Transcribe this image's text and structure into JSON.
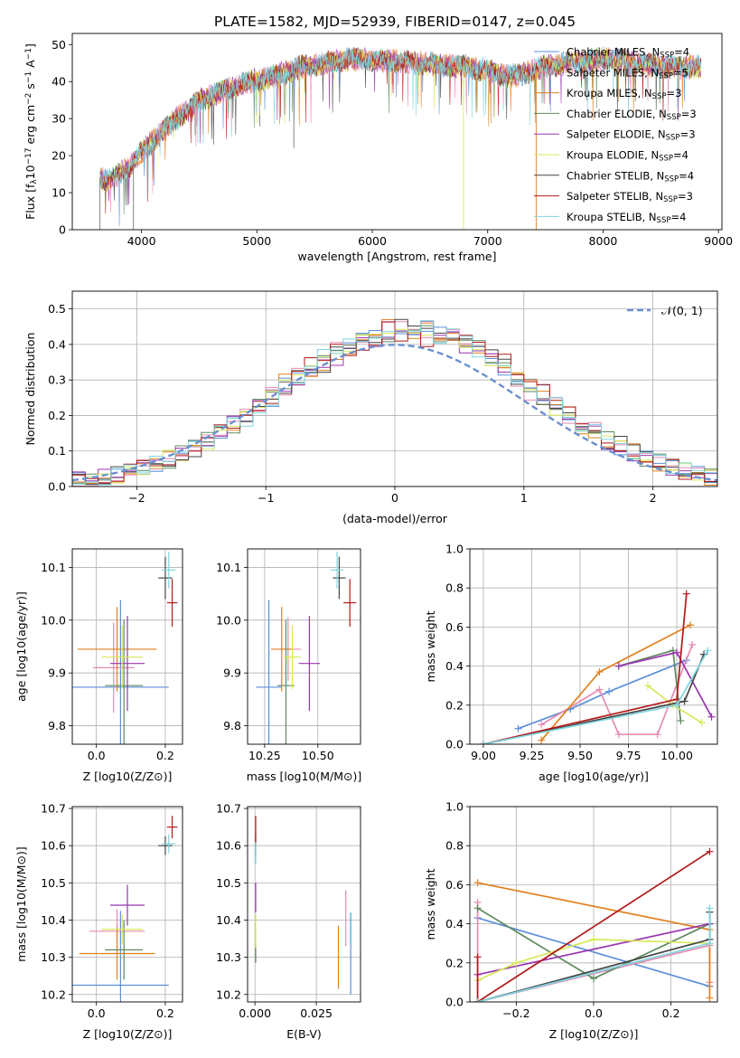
{
  "figure_title": "PLATE=1582, MJD=52939, FIBERID=0147, z=0.045",
  "colors": {
    "Chabrier MILES": "#5b8fd8",
    "Salpeter MILES": "#e68bb3",
    "Kroupa MILES": "#e0811f",
    "Chabrier ELODIE": "#5f8a5f",
    "Salpeter ELODIE": "#9a35b0",
    "Kroupa ELODIE": "#d7e85a",
    "Chabrier STELIB": "#444444",
    "Salpeter STELIB": "#b21a1a",
    "Kroupa STELIB": "#7fd6df"
  },
  "chart_data": [
    {
      "id": "spectrum",
      "type": "line",
      "title": "PLATE=1582, MJD=52939, FIBERID=0147, z=0.045",
      "xlabel": "wavelength [Angstrom, rest frame]",
      "ylabel": "Flux [f_λ10^-17 erg cm^-2 s^-1 A^-1]",
      "xlim": [
        3400,
        9030
      ],
      "ylim": [
        0,
        53
      ],
      "xticks": [
        4000,
        5000,
        6000,
        7000,
        8000,
        9000
      ],
      "yticks": [
        0,
        10,
        20,
        30,
        40,
        50
      ],
      "grid": false,
      "legend_position": "top-right",
      "legend": [
        {
          "name": "Chabrier MILES",
          "nssp": "4"
        },
        {
          "name": "Salpeter MILES",
          "nssp": "5"
        },
        {
          "name": "Kroupa MILES",
          "nssp": "3"
        },
        {
          "name": "Chabrier ELODIE",
          "nssp": "3"
        },
        {
          "name": "Salpeter ELODIE",
          "nssp": "3"
        },
        {
          "name": "Kroupa ELODIE",
          "nssp": "4"
        },
        {
          "name": "Chabrier STELIB",
          "nssp": "4"
        },
        {
          "name": "Salpeter STELIB",
          "nssp": "3"
        },
        {
          "name": "Kroupa STELIB",
          "nssp": "4"
        }
      ],
      "continuum": {
        "x": [
          3640,
          3700,
          3800,
          3900,
          3950,
          4000,
          4100,
          4200,
          4300,
          4400,
          4500,
          4600,
          4700,
          4800,
          4900,
          5000,
          5100,
          5200,
          5300,
          5400,
          5500,
          5600,
          5800,
          6000,
          6200,
          6400,
          6600,
          6800,
          6900,
          7000,
          7100,
          7200,
          7300,
          7400,
          7500,
          7700,
          7900,
          8100,
          8300,
          8500,
          8700,
          8850
        ],
        "y": [
          14,
          13,
          15,
          17,
          19,
          21,
          24,
          27,
          30,
          32,
          35,
          36,
          37.5,
          38.5,
          39.5,
          40.5,
          41,
          42,
          43,
          44,
          44.5,
          45,
          46,
          46,
          45.5,
          45,
          44.5,
          44,
          43.5,
          43,
          42,
          41.5,
          42,
          43,
          44,
          45,
          46,
          46,
          45,
          44,
          44,
          44
        ]
      },
      "drops": [
        {
          "x": 3640,
          "y": 0
        },
        {
          "x": 3930,
          "y": 0
        },
        {
          "x": 6790,
          "y": 0
        },
        {
          "x": 7420,
          "y": 0
        },
        {
          "x": 5320,
          "y": 22
        }
      ]
    },
    {
      "id": "residuals",
      "type": "histogram",
      "xlabel": "(data-model)/error",
      "ylabel": "Normed distribution",
      "xlim": [
        -2.5,
        2.5
      ],
      "ylim": [
        0,
        0.55
      ],
      "xticks": [
        -2,
        -1,
        0,
        1,
        2
      ],
      "yticks": [
        0.0,
        0.1,
        0.2,
        0.3,
        0.4,
        0.5
      ],
      "grid": true,
      "legend_position": "top-right",
      "reference_curve": {
        "label": "𝒩(0, 1)",
        "style": "dashed"
      },
      "bin_width": 0.1
    },
    {
      "id": "age_vs_Z",
      "type": "errorbar",
      "xlabel": "Z [log10(Z/Z⊙)]",
      "ylabel": "age  [log10(age/yr)]",
      "xlim": [
        -0.07,
        0.25
      ],
      "ylim": [
        9.765,
        10.135
      ],
      "xticks": [
        0.0,
        0.2
      ],
      "yticks": [
        9.8,
        9.9,
        10.0,
        10.1
      ],
      "grid": true,
      "points": [
        {
          "series": "Chabrier MILES",
          "x": 0.07,
          "xerr": 0.14,
          "y": 9.873,
          "yerr": 0.165
        },
        {
          "series": "Salpeter MILES",
          "x": 0.05,
          "xerr": 0.06,
          "y": 9.91,
          "yerr": 0.085
        },
        {
          "series": "Kroupa MILES",
          "x": 0.06,
          "xerr": 0.115,
          "y": 9.945,
          "yerr": 0.08
        },
        {
          "series": "Chabrier ELODIE",
          "x": 0.08,
          "xerr": 0.055,
          "y": 9.876,
          "yerr": 0.125
        },
        {
          "series": "Salpeter ELODIE",
          "x": 0.09,
          "xerr": 0.05,
          "y": 9.918,
          "yerr": 0.09
        },
        {
          "series": "Kroupa ELODIE",
          "x": 0.075,
          "xerr": 0.06,
          "y": 9.93,
          "yerr": 0.06
        },
        {
          "series": "Chabrier STELIB",
          "x": 0.2,
          "xerr": 0.02,
          "y": 10.08,
          "yerr": 0.04
        },
        {
          "series": "Salpeter STELIB",
          "x": 0.22,
          "xerr": 0.015,
          "y": 10.033,
          "yerr": 0.045
        },
        {
          "series": "Kroupa STELIB",
          "x": 0.21,
          "xerr": 0.02,
          "y": 10.095,
          "yerr": 0.035
        }
      ]
    },
    {
      "id": "age_vs_mass",
      "type": "errorbar",
      "xlabel": "mass [log10(M/M⊙)]",
      "ylabel": "",
      "xlim": [
        10.17,
        10.7
      ],
      "ylim": [
        9.765,
        10.135
      ],
      "xticks": [
        10.25,
        10.5
      ],
      "yticks": [
        9.8,
        9.9,
        10.0,
        10.1
      ],
      "grid": true,
      "points": [
        {
          "series": "Chabrier MILES",
          "x": 10.27,
          "xerr": 0.06,
          "y": 9.873,
          "yerr": 0.165
        },
        {
          "series": "Salpeter MILES",
          "x": 10.36,
          "xerr": 0.06,
          "y": 9.945,
          "yerr": 0.06
        },
        {
          "series": "Kroupa MILES",
          "x": 10.33,
          "xerr": 0.05,
          "y": 9.945,
          "yerr": 0.08
        },
        {
          "series": "Chabrier ELODIE",
          "x": 10.35,
          "xerr": 0.04,
          "y": 9.876,
          "yerr": 0.125
        },
        {
          "series": "Salpeter ELODIE",
          "x": 10.46,
          "xerr": 0.05,
          "y": 9.918,
          "yerr": 0.09
        },
        {
          "series": "Kroupa ELODIE",
          "x": 10.38,
          "xerr": 0.04,
          "y": 9.93,
          "yerr": 0.06
        },
        {
          "series": "Chabrier STELIB",
          "x": 10.6,
          "xerr": 0.03,
          "y": 10.08,
          "yerr": 0.04
        },
        {
          "series": "Salpeter STELIB",
          "x": 10.65,
          "xerr": 0.03,
          "y": 10.033,
          "yerr": 0.045
        },
        {
          "series": "Kroupa STELIB",
          "x": 10.59,
          "xerr": 0.03,
          "y": 10.095,
          "yerr": 0.035
        }
      ]
    },
    {
      "id": "weight_vs_age",
      "type": "line",
      "xlabel": "age  [log10(age/yr)]",
      "ylabel": "mass weight",
      "xlim": [
        8.93,
        10.21
      ],
      "ylim": [
        0,
        1
      ],
      "xticks": [
        9.0,
        9.25,
        9.5,
        9.75,
        10.0
      ],
      "yticks": [
        0.0,
        0.2,
        0.4,
        0.6,
        0.8,
        1.0
      ],
      "grid": true,
      "series": [
        {
          "name": "Chabrier MILES",
          "x": [
            9.18,
            9.45,
            9.65,
            10.05
          ],
          "y": [
            0.08,
            0.18,
            0.27,
            0.43
          ]
        },
        {
          "name": "Salpeter MILES",
          "x": [
            9.3,
            9.6,
            9.7,
            9.9,
            10.08
          ],
          "y": [
            0.1,
            0.28,
            0.05,
            0.05,
            0.51
          ]
        },
        {
          "name": "Kroupa MILES",
          "x": [
            9.3,
            9.6,
            10.07
          ],
          "y": [
            0.02,
            0.37,
            0.61
          ]
        },
        {
          "name": "Chabrier ELODIE",
          "x": [
            9.7,
            9.98,
            10.02
          ],
          "y": [
            0.4,
            0.48,
            0.12
          ]
        },
        {
          "name": "Salpeter ELODIE",
          "x": [
            9.7,
            10.0,
            10.18
          ],
          "y": [
            0.4,
            0.47,
            0.14
          ]
        },
        {
          "name": "Kroupa ELODIE",
          "x": [
            9.85,
            9.98,
            10.13
          ],
          "y": [
            0.3,
            0.2,
            0.11
          ]
        },
        {
          "name": "Chabrier STELIB",
          "x": [
            9.0,
            10.04,
            10.14
          ],
          "y": [
            0.0,
            0.22,
            0.46
          ]
        },
        {
          "name": "Salpeter STELIB",
          "x": [
            9.0,
            10.0,
            10.05
          ],
          "y": [
            0.0,
            0.23,
            0.77
          ]
        },
        {
          "name": "Kroupa STELIB",
          "x": [
            9.0,
            10.0,
            10.16
          ],
          "y": [
            0.0,
            0.2,
            0.48
          ]
        }
      ]
    },
    {
      "id": "mass_vs_Z",
      "type": "errorbar",
      "xlabel": "Z [log10(Z/Z⊙)]",
      "ylabel": "mass [log10(M/M⊙)]",
      "xlim": [
        -0.07,
        0.25
      ],
      "ylim": [
        10.18,
        10.705
      ],
      "xticks": [
        0.0,
        0.2
      ],
      "yticks": [
        10.2,
        10.3,
        10.4,
        10.5,
        10.6,
        10.7
      ],
      "grid": true,
      "points": [
        {
          "series": "Chabrier MILES",
          "x": 0.07,
          "xerr": 0.14,
          "y": 10.225,
          "yerr": 0.2
        },
        {
          "series": "Salpeter MILES",
          "x": 0.06,
          "xerr": 0.08,
          "y": 10.37,
          "yerr": 0.06
        },
        {
          "series": "Kroupa MILES",
          "x": 0.06,
          "xerr": 0.11,
          "y": 10.31,
          "yerr": 0.07
        },
        {
          "series": "Chabrier ELODIE",
          "x": 0.08,
          "xerr": 0.055,
          "y": 10.32,
          "yerr": 0.08
        },
        {
          "series": "Salpeter ELODIE",
          "x": 0.09,
          "xerr": 0.05,
          "y": 10.44,
          "yerr": 0.055
        },
        {
          "series": "Kroupa ELODIE",
          "x": 0.075,
          "xerr": 0.06,
          "y": 10.375,
          "yerr": 0.04
        },
        {
          "series": "Chabrier STELIB",
          "x": 0.2,
          "xerr": 0.02,
          "y": 10.6,
          "yerr": 0.025
        },
        {
          "series": "Salpeter STELIB",
          "x": 0.22,
          "xerr": 0.015,
          "y": 10.65,
          "yerr": 0.03
        },
        {
          "series": "Kroupa STELIB",
          "x": 0.21,
          "xerr": 0.02,
          "y": 10.605,
          "yerr": 0.025
        }
      ]
    },
    {
      "id": "mass_vs_ebv",
      "type": "errorbar",
      "xlabel": "E(B-V)",
      "ylabel": "",
      "xlim": [
        -0.003,
        0.043
      ],
      "ylim": [
        10.18,
        10.705
      ],
      "xticks": [
        0.0,
        0.025
      ],
      "yticks": [
        10.2,
        10.3,
        10.4,
        10.5,
        10.6,
        10.7
      ],
      "grid": true,
      "points": [
        {
          "series": "Chabrier MILES",
          "x": 0.039,
          "xerr": 0,
          "y": 10.31,
          "yerr": 0.11
        },
        {
          "series": "Salpeter MILES",
          "x": 0.037,
          "xerr": 0,
          "y": 10.405,
          "yerr": 0.075
        },
        {
          "series": "Kroupa MILES",
          "x": 0.034,
          "xerr": 0,
          "y": 10.3,
          "yerr": 0.085
        },
        {
          "series": "Chabrier ELODIE",
          "x": 0.0003,
          "xerr": 0,
          "y": 10.31,
          "yerr": 0.025
        },
        {
          "series": "Salpeter ELODIE",
          "x": 0.0003,
          "xerr": 0,
          "y": 10.46,
          "yerr": 0.04
        },
        {
          "series": "Kroupa ELODIE",
          "x": 0.0003,
          "xerr": 0,
          "y": 10.37,
          "yerr": 0.045
        },
        {
          "series": "Chabrier STELIB",
          "x": 0.0003,
          "xerr": 0,
          "y": 10.6,
          "yerr": 0.03
        },
        {
          "series": "Salpeter STELIB",
          "x": 0.0003,
          "xerr": 0,
          "y": 10.64,
          "yerr": 0.04
        },
        {
          "series": "Kroupa STELIB",
          "x": 0.0003,
          "xerr": 0,
          "y": 10.58,
          "yerr": 0.03
        }
      ]
    },
    {
      "id": "weight_vs_Z",
      "type": "line",
      "xlabel": "Z [log10(Z/Z⊙)]",
      "ylabel": "mass weight",
      "xlim": [
        -0.32,
        0.32
      ],
      "ylim": [
        0,
        1
      ],
      "xticks": [
        -0.2,
        0.0,
        0.2
      ],
      "yticks": [
        0.0,
        0.2,
        0.4,
        0.6,
        0.8,
        1.0
      ],
      "grid": true,
      "series": [
        {
          "name": "Chabrier MILES",
          "x": [
            -0.3,
            0.3
          ],
          "y": [
            0.43,
            0.08
          ]
        },
        {
          "name": "Salpeter MILES",
          "x": [
            -0.3,
            -0.3,
            0.3,
            0.3
          ],
          "y": [
            0.51,
            0.0,
            0.29,
            0.1
          ]
        },
        {
          "name": "Kroupa MILES",
          "x": [
            -0.3,
            0.3,
            0.3
          ],
          "y": [
            0.61,
            0.37,
            0.02
          ]
        },
        {
          "name": "Chabrier ELODIE",
          "x": [
            -0.3,
            0.0,
            0.3
          ],
          "y": [
            0.48,
            0.12,
            0.4
          ]
        },
        {
          "name": "Salpeter ELODIE",
          "x": [
            -0.3,
            0.3
          ],
          "y": [
            0.14,
            0.4
          ]
        },
        {
          "name": "Kroupa ELODIE",
          "x": [
            -0.3,
            -0.2,
            0.0,
            0.3
          ],
          "y": [
            0.11,
            0.2,
            0.32,
            0.3
          ]
        },
        {
          "name": "Chabrier STELIB",
          "x": [
            -0.3,
            0.3,
            0.3
          ],
          "y": [
            0.0,
            0.32,
            0.46
          ]
        },
        {
          "name": "Salpeter STELIB",
          "x": [
            -0.3,
            -0.3,
            0.3
          ],
          "y": [
            0.23,
            0.0,
            0.77
          ]
        },
        {
          "name": "Kroupa STELIB",
          "x": [
            -0.3,
            0.3,
            0.3
          ],
          "y": [
            0.0,
            0.3,
            0.48
          ]
        }
      ]
    }
  ]
}
